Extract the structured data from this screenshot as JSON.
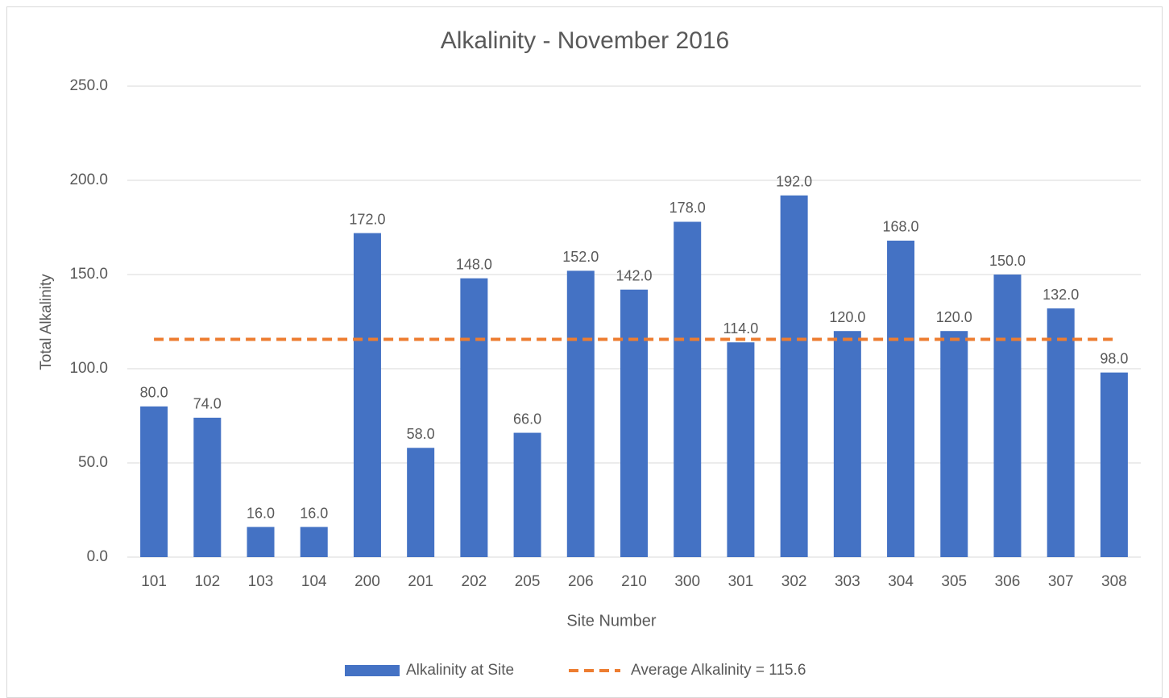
{
  "chart_data": {
    "type": "bar",
    "title": "Alkalinity - November 2016",
    "x_label": "Site Number",
    "y_label": "Total Alkalinity",
    "categories": [
      "101",
      "102",
      "103",
      "104",
      "200",
      "201",
      "202",
      "205",
      "206",
      "210",
      "300",
      "301",
      "302",
      "303",
      "304",
      "305",
      "306",
      "307",
      "308"
    ],
    "series": [
      {
        "name": "Alkalinity at Site",
        "type": "bar",
        "color": "#4472c4",
        "values": [
          80,
          74,
          16,
          16,
          172,
          58,
          148,
          66,
          152,
          142,
          178,
          114,
          192,
          120,
          168,
          120,
          150,
          132,
          98
        ],
        "value_labels": [
          "80.0",
          "74.0",
          "16.0",
          "16.0",
          "172.0",
          "58.0",
          "148.0",
          "66.0",
          "152.0",
          "142.0",
          "178.0",
          "114.0",
          "192.0",
          "120.0",
          "168.0",
          "120.0",
          "150.0",
          "132.0",
          "98.0"
        ]
      },
      {
        "name": "Average Alkalinity = 115.6",
        "type": "line",
        "color": "#ed7d31",
        "line_style": "dashed",
        "values": [
          115.6,
          115.6,
          115.6,
          115.6,
          115.6,
          115.6,
          115.6,
          115.6,
          115.6,
          115.6,
          115.6,
          115.6,
          115.6,
          115.6,
          115.6,
          115.6,
          115.6,
          115.6,
          115.6
        ]
      }
    ],
    "ylim": [
      0,
      250
    ],
    "yticks": [
      {
        "value": 0,
        "label": "0.0"
      },
      {
        "value": 50,
        "label": "50.0"
      },
      {
        "value": 100,
        "label": "100.0"
      },
      {
        "value": 150,
        "label": "150.0"
      },
      {
        "value": 200,
        "label": "200.0"
      },
      {
        "value": 250,
        "label": "250.0"
      }
    ],
    "grid": true,
    "legend": "bottom"
  }
}
